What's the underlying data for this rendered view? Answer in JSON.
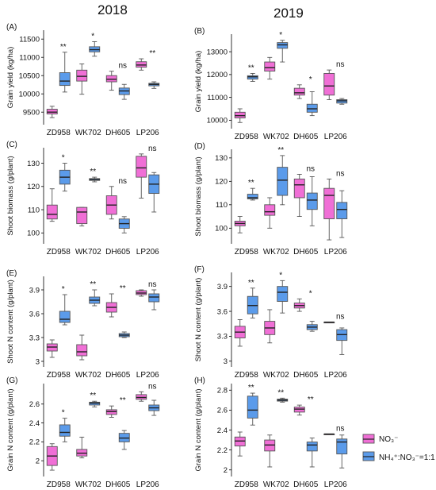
{
  "years": {
    "left": "2018",
    "right": "2019"
  },
  "colors": {
    "no3": "#f06fd6",
    "nh4": "#5b9bea",
    "stroke": "#555555"
  },
  "legend": {
    "no3_label": "NO₃⁻",
    "nh4_label": "NH₄⁺:NO₃⁻=1:1"
  },
  "categories": [
    "ZD958",
    "WK702",
    "DH605",
    "LP206"
  ],
  "chart_data": [
    {
      "type": "box",
      "panel": "(A)",
      "year": "2018",
      "ylabel": "Grain yield (kg/ha)",
      "yticks": [
        9500,
        10000,
        10500,
        11000,
        11500
      ],
      "ylim": [
        9200,
        11700
      ],
      "significance": [
        "**",
        "*",
        "ns",
        "**"
      ],
      "no3": [
        [
          9350,
          9450,
          9500,
          9580,
          9660
        ],
        [
          9990,
          10350,
          10480,
          10650,
          10820
        ],
        [
          10100,
          10330,
          10400,
          10500,
          10620
        ],
        [
          10650,
          10730,
          10790,
          10880,
          10960
        ]
      ],
      "nh4": [
        [
          10050,
          10230,
          10350,
          10580,
          11140
        ],
        [
          11030,
          11150,
          11210,
          11290,
          11430
        ],
        [
          9850,
          9980,
          10080,
          10160,
          10260
        ],
        [
          10150,
          10220,
          10260,
          10290,
          10330
        ]
      ]
    },
    {
      "type": "box",
      "panel": "(B)",
      "year": "2019",
      "ylabel": "Grain yield (kg/ha)",
      "yticks": [
        10000,
        11000,
        12000,
        13000
      ],
      "ylim": [
        9700,
        13700
      ],
      "significance": [
        "**",
        "*",
        "*",
        "ns"
      ],
      "no3": [
        [
          9900,
          10100,
          10200,
          10350,
          10500
        ],
        [
          11800,
          12150,
          12300,
          12550,
          12750
        ],
        [
          10950,
          11100,
          11200,
          11400,
          11550
        ],
        [
          10900,
          11100,
          11500,
          12050,
          12200
        ]
      ],
      "nh4": [
        [
          11700,
          11800,
          11900,
          11950,
          12050
        ],
        [
          12550,
          13150,
          13300,
          13400,
          13500
        ],
        [
          10200,
          10350,
          10500,
          10700,
          11250
        ],
        [
          10700,
          10750,
          10850,
          10900,
          10950
        ]
      ]
    },
    {
      "type": "box",
      "panel": "(C)",
      "year": "2018",
      "ylabel": "Shoot biomass (g/plant)",
      "yticks": [
        100,
        110,
        120,
        130
      ],
      "ylim": [
        96,
        136
      ],
      "significance": [
        "*",
        "**",
        "ns",
        "ns"
      ],
      "no3": [
        [
          105,
          106,
          108,
          112,
          119
        ],
        [
          103,
          104,
          109,
          111,
          111
        ],
        [
          106,
          108,
          112,
          116,
          120
        ],
        [
          115,
          124,
          128,
          133,
          134
        ]
      ],
      "nh4": [
        [
          118,
          121,
          124,
          127,
          130
        ],
        [
          122,
          122.6,
          123,
          123.4,
          124
        ],
        [
          100,
          102,
          104,
          106,
          107
        ],
        [
          109,
          117,
          121,
          125,
          126
        ]
      ]
    },
    {
      "type": "box",
      "panel": "(D)",
      "year": "2019",
      "ylabel": "Shoot biomass (g/plant)",
      "yticks": [
        100,
        110,
        120,
        130
      ],
      "ylim": [
        94,
        133
      ],
      "significance": [
        "**",
        "**",
        "ns",
        "ns"
      ],
      "no3": [
        [
          98,
          101,
          102,
          103,
          105
        ],
        [
          100,
          105.5,
          107,
          110,
          113
        ],
        [
          105,
          113,
          118.5,
          121,
          123
        ],
        [
          95,
          104,
          114,
          117,
          121
        ]
      ],
      "nh4": [
        [
          112,
          112.5,
          113,
          114.5,
          117
        ],
        [
          110,
          114,
          120.5,
          126,
          131
        ],
        [
          101,
          108,
          112,
          115,
          122
        ],
        [
          96,
          104,
          108,
          111,
          116
        ]
      ]
    },
    {
      "type": "box",
      "panel": "(E)",
      "year": "2018",
      "ylabel": "Shoot N content (g/plant)",
      "yticks": [
        3.0,
        3.3,
        3.6,
        3.9
      ],
      "ylim": [
        2.95,
        4.05
      ],
      "significance": [
        "*",
        "**",
        "**",
        "ns"
      ],
      "no3": [
        [
          3.05,
          3.13,
          3.18,
          3.22,
          3.27
        ],
        [
          3.02,
          3.07,
          3.12,
          3.21,
          3.33
        ],
        [
          3.56,
          3.62,
          3.68,
          3.74,
          3.85
        ],
        [
          3.82,
          3.84,
          3.86,
          3.89,
          3.9
        ]
      ],
      "nh4": [
        [
          3.46,
          3.49,
          3.53,
          3.63,
          3.84
        ],
        [
          3.7,
          3.73,
          3.77,
          3.81,
          3.9
        ],
        [
          3.3,
          3.31,
          3.33,
          3.35,
          3.37
        ],
        [
          3.65,
          3.75,
          3.81,
          3.85,
          3.9
        ]
      ]
    },
    {
      "type": "box",
      "panel": "(F)",
      "year": "2019",
      "ylabel": "Shoot N content (g/plant)",
      "yticks": [
        3.0,
        3.3,
        3.6,
        3.9
      ],
      "ylim": [
        2.95,
        4.05
      ],
      "significance": [
        "**",
        "*",
        "*",
        "ns"
      ],
      "no3": [
        [
          3.18,
          3.28,
          3.35,
          3.42,
          3.5
        ],
        [
          3.22,
          3.32,
          3.4,
          3.48,
          3.62
        ],
        [
          3.6,
          3.64,
          3.67,
          3.7,
          3.75
        ],
        [
          3.47,
          3.47,
          3.47,
          3.47,
          3.47
        ]
      ],
      "nh4": [
        [
          3.52,
          3.57,
          3.67,
          3.78,
          3.88
        ],
        [
          3.58,
          3.72,
          3.83,
          3.9,
          3.97
        ],
        [
          3.36,
          3.38,
          3.41,
          3.44,
          3.48
        ],
        [
          3.08,
          3.25,
          3.32,
          3.38,
          3.4
        ]
      ]
    },
    {
      "type": "box",
      "panel": "(G)",
      "year": "2018",
      "ylabel": "Grain N content (g/plant)",
      "yticks": [
        2.0,
        2.2,
        2.4,
        2.6
      ],
      "ylim": [
        1.85,
        2.8
      ],
      "significance": [
        "*",
        "**",
        "**",
        "ns"
      ],
      "no3": [
        [
          1.9,
          1.95,
          2.05,
          2.15,
          2.18
        ],
        [
          2.03,
          2.05,
          2.08,
          2.12,
          2.25
        ],
        [
          2.46,
          2.49,
          2.52,
          2.54,
          2.58
        ],
        [
          2.63,
          2.65,
          2.67,
          2.7,
          2.73
        ]
      ],
      "nh4": [
        [
          2.2,
          2.26,
          2.3,
          2.38,
          2.45
        ],
        [
          2.57,
          2.59,
          2.61,
          2.62,
          2.63
        ],
        [
          2.12,
          2.2,
          2.24,
          2.29,
          2.32
        ],
        [
          2.48,
          2.53,
          2.56,
          2.59,
          2.64
        ]
      ]
    },
    {
      "type": "box",
      "panel": "(H)",
      "year": "2019",
      "ylabel": "Grain N content (g/plant)",
      "yticks": [
        2.0,
        2.2,
        2.4,
        2.6,
        2.8
      ],
      "ylim": [
        1.95,
        2.85
      ],
      "significance": [
        "**",
        "**",
        "**",
        "ns"
      ],
      "no3": [
        [
          2.14,
          2.24,
          2.29,
          2.33,
          2.38
        ],
        [
          2.03,
          2.19,
          2.25,
          2.3,
          2.35
        ],
        [
          2.55,
          2.58,
          2.61,
          2.63,
          2.65
        ],
        [
          2.36,
          2.36,
          2.36,
          2.36,
          2.36
        ]
      ],
      "nh4": [
        [
          2.45,
          2.52,
          2.6,
          2.74,
          2.77
        ],
        [
          2.68,
          2.69,
          2.7,
          2.71,
          2.72
        ],
        [
          2.03,
          2.19,
          2.25,
          2.28,
          2.32
        ],
        [
          2.02,
          2.16,
          2.28,
          2.31,
          2.35
        ]
      ]
    }
  ]
}
